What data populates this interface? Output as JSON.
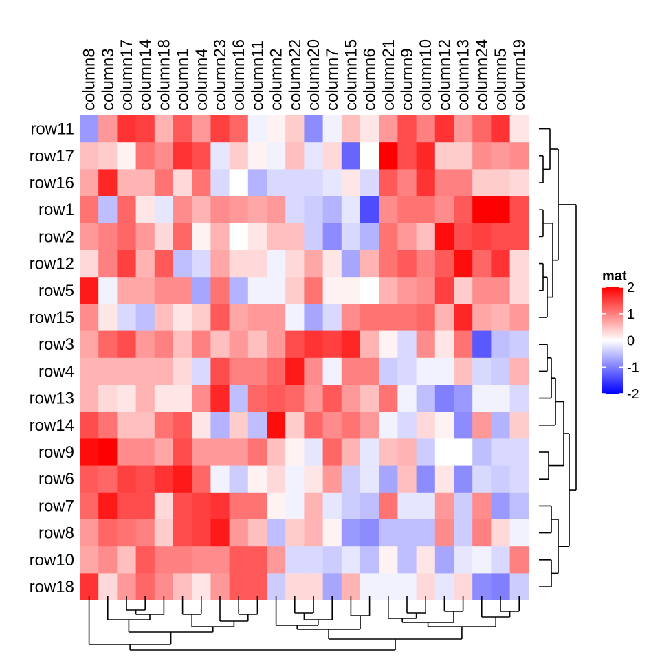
{
  "chart_data": {
    "type": "heatmap",
    "rows": [
      "row11",
      "row17",
      "row16",
      "row1",
      "row2",
      "row12",
      "row5",
      "row15",
      "row3",
      "row4",
      "row13",
      "row14",
      "row9",
      "row6",
      "row7",
      "row8",
      "row10",
      "row18"
    ],
    "columns": [
      "column8",
      "column3",
      "column17",
      "column14",
      "column18",
      "column1",
      "column4",
      "column23",
      "column16",
      "column11",
      "column2",
      "column22",
      "column20",
      "column7",
      "column15",
      "column6",
      "column21",
      "column9",
      "column10",
      "column12",
      "column13",
      "column24",
      "column5",
      "column19"
    ],
    "values": [
      [
        -0.8,
        0.8,
        1.6,
        1.5,
        0.6,
        1.3,
        0.8,
        1.5,
        1.2,
        -0.1,
        0.1,
        0.4,
        -0.9,
        -0.1,
        0.5,
        0.2,
        0.8,
        1.4,
        1.0,
        1.6,
        0.8,
        1.2,
        1.6,
        0.2
      ],
      [
        0.5,
        0.4,
        0.1,
        1.1,
        0.9,
        1.6,
        1.4,
        -0.2,
        0.4,
        0.1,
        -0.1,
        0.5,
        -0.2,
        0.3,
        -1.2,
        0.0,
        2.0,
        1.4,
        1.7,
        0.4,
        0.4,
        0.9,
        0.8,
        0.9
      ],
      [
        0.7,
        1.7,
        0.6,
        0.6,
        1.1,
        0.3,
        1.1,
        -0.3,
        0.0,
        -0.6,
        -0.3,
        -0.3,
        -0.3,
        -0.2,
        0.2,
        -0.3,
        1.3,
        1.0,
        1.6,
        1.0,
        1.0,
        0.4,
        0.4,
        0.3
      ],
      [
        1.1,
        -0.5,
        1.2,
        0.2,
        -0.2,
        0.9,
        0.6,
        0.9,
        0.8,
        0.7,
        0.8,
        -0.3,
        -0.4,
        -0.6,
        -0.2,
        -1.4,
        0.9,
        1.1,
        1.1,
        0.9,
        1.3,
        2.0,
        2.0,
        1.4
      ],
      [
        0.8,
        1.0,
        1.2,
        0.8,
        0.3,
        1.2,
        0.1,
        0.6,
        0.0,
        0.2,
        0.5,
        0.5,
        -0.4,
        -0.9,
        -0.3,
        -0.6,
        1.1,
        0.8,
        0.5,
        1.9,
        1.4,
        1.5,
        1.4,
        1.4
      ],
      [
        0.3,
        1.0,
        1.5,
        0.6,
        1.3,
        -0.5,
        -0.3,
        0.7,
        0.3,
        0.3,
        -0.1,
        0.3,
        0.7,
        0.2,
        -0.7,
        0.6,
        1.1,
        1.3,
        1.0,
        1.3,
        1.9,
        1.2,
        1.6,
        0.3
      ],
      [
        1.8,
        -0.1,
        0.7,
        0.7,
        0.9,
        0.9,
        -0.7,
        1.1,
        -0.6,
        -0.1,
        -0.1,
        0.4,
        1.1,
        0.1,
        0.1,
        0.0,
        0.6,
        0.8,
        0.9,
        1.5,
        0.4,
        0.9,
        0.9,
        0.3
      ],
      [
        0.9,
        0.2,
        -0.3,
        -0.5,
        0.5,
        0.2,
        0.4,
        1.3,
        0.7,
        0.8,
        0.8,
        -0.1,
        -0.7,
        -0.3,
        0.9,
        1.1,
        1.1,
        1.1,
        1.2,
        0.6,
        1.7,
        0.7,
        0.6,
        0.8
      ],
      [
        0.7,
        1.2,
        1.4,
        0.8,
        1.0,
        0.5,
        1.0,
        0.5,
        0.8,
        0.5,
        0.8,
        1.4,
        1.6,
        1.5,
        1.7,
        0.6,
        0.1,
        -0.3,
        0.9,
        0.2,
        1.1,
        -1.3,
        -0.5,
        -0.4
      ],
      [
        0.6,
        0.6,
        0.6,
        0.6,
        0.6,
        0.3,
        -0.3,
        1.4,
        1.0,
        1.0,
        1.2,
        1.8,
        0.9,
        -0.1,
        1.0,
        1.0,
        -0.4,
        -0.3,
        -0.1,
        -0.1,
        0.5,
        -0.3,
        -0.4,
        0.6
      ],
      [
        0.6,
        0.3,
        0.2,
        0.6,
        0.2,
        0.2,
        0.9,
        1.7,
        -0.5,
        1.2,
        1.3,
        1.2,
        0.8,
        1.3,
        0.8,
        0.5,
        1.1,
        -0.1,
        -0.5,
        -1.0,
        -0.8,
        -0.1,
        -0.1,
        -0.3
      ],
      [
        1.4,
        1.1,
        0.5,
        0.5,
        1.1,
        1.3,
        0.2,
        -0.6,
        0.4,
        -0.5,
        1.9,
        0.4,
        1.2,
        0.9,
        1.1,
        0.8,
        -0.1,
        -0.3,
        0.3,
        0.1,
        -0.9,
        0.8,
        -0.6,
        0.4
      ],
      [
        1.9,
        2.0,
        0.9,
        0.9,
        0.7,
        1.4,
        0.8,
        0.8,
        0.8,
        1.1,
        0.5,
        0.1,
        -0.2,
        1.2,
        0.6,
        -0.2,
        0.5,
        0.6,
        -0.4,
        0.0,
        0.0,
        -0.5,
        -0.3,
        -0.3
      ],
      [
        1.3,
        1.2,
        1.5,
        1.4,
        1.6,
        1.8,
        1.2,
        -0.1,
        -0.4,
        0.1,
        0.3,
        -0.1,
        0.2,
        0.8,
        -0.4,
        -0.2,
        -0.7,
        0.5,
        -0.9,
        0.2,
        -0.9,
        -0.3,
        -0.4,
        -0.3
      ],
      [
        1.2,
        1.8,
        1.4,
        1.4,
        0.3,
        1.4,
        1.5,
        1.6,
        1.1,
        1.1,
        0.1,
        -0.1,
        0.6,
        -0.2,
        -0.4,
        -0.5,
        1.1,
        -0.2,
        -0.2,
        0.8,
        -0.4,
        0.9,
        -0.8,
        -0.5
      ],
      [
        0.8,
        1.2,
        1.1,
        1.0,
        0.4,
        1.4,
        1.5,
        1.8,
        0.8,
        0.5,
        -0.5,
        0.4,
        0.6,
        0.1,
        -0.8,
        -0.9,
        -0.5,
        -0.5,
        -0.5,
        0.9,
        -0.4,
        1.0,
        0.3,
        -0.1
      ],
      [
        0.7,
        0.9,
        0.5,
        1.3,
        1.0,
        1.0,
        0.9,
        0.9,
        1.3,
        1.3,
        0.8,
        -0.3,
        -0.3,
        -0.4,
        -0.2,
        -0.5,
        0.1,
        -0.5,
        0.2,
        -0.7,
        -0.2,
        -0.1,
        -0.3,
        1.0
      ],
      [
        1.6,
        0.3,
        0.8,
        1.2,
        0.9,
        0.5,
        0.2,
        0.8,
        1.3,
        1.3,
        -0.4,
        0.3,
        0.3,
        -0.7,
        0.6,
        -0.1,
        -0.1,
        -0.1,
        0.3,
        -0.2,
        0.3,
        -0.9,
        -1.0,
        -0.4
      ]
    ],
    "legend": {
      "title": "mat",
      "ticks": [
        "2",
        "1",
        "0",
        "-1",
        "-2"
      ],
      "tick_values": [
        2,
        1,
        0,
        -1,
        -2
      ],
      "placement": "right",
      "color_low": "#0000ff",
      "color_mid": "#ffffff",
      "color_high": "#ff0000"
    },
    "row_dendrogram": true,
    "column_dendrogram": true
  }
}
